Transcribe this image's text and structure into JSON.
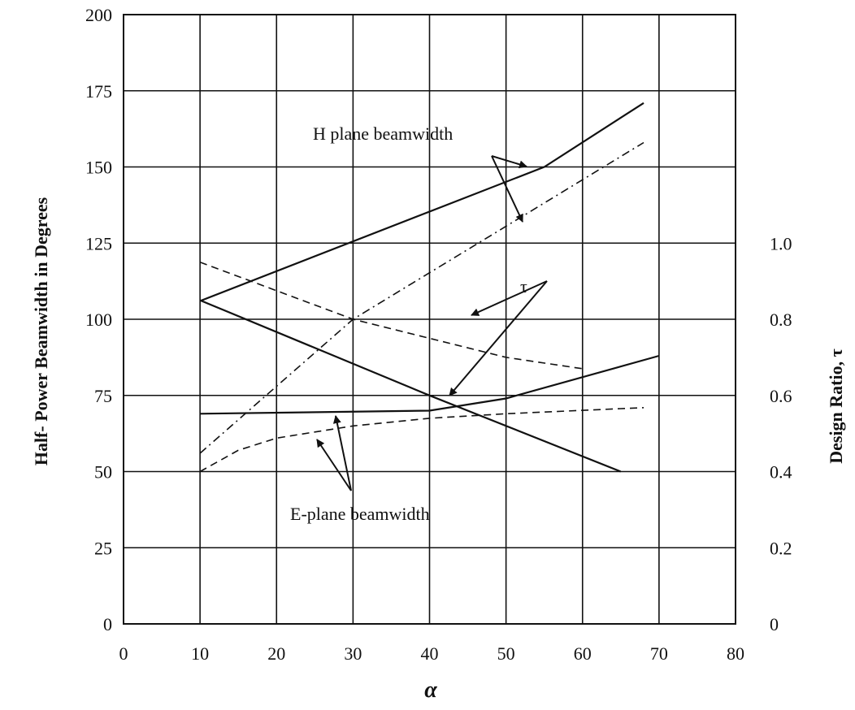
{
  "chart_data": {
    "type": "line",
    "xlabel": "α",
    "ylabel": "Half- Power Beamwidth in Degrees",
    "y2label": "Design Ratio, τ",
    "xlim": [
      0,
      80
    ],
    "ylim": [
      0,
      200
    ],
    "y2lim": [
      0,
      1.6
    ],
    "grid": true,
    "x_ticks": [
      "0",
      "10",
      "20",
      "30",
      "40",
      "50",
      "60",
      "70",
      "80"
    ],
    "x_tick_values": [
      0,
      10,
      20,
      30,
      40,
      50,
      60,
      70,
      80
    ],
    "y_ticks": [
      "0",
      "25",
      "50",
      "75",
      "100",
      "125",
      "150",
      "175",
      "200"
    ],
    "y_tick_values": [
      0,
      25,
      50,
      75,
      100,
      125,
      150,
      175,
      200
    ],
    "y2_ticks": [
      "0",
      "0.2",
      "0.4",
      "0.6",
      "0.8",
      "1.0"
    ],
    "y2_tick_values": [
      0,
      0.2,
      0.4,
      0.6,
      0.8,
      1.0
    ],
    "annotations": [
      {
        "text": "H plane beamwidth"
      },
      {
        "text": "τ"
      },
      {
        "text": "E-plane beamwidth"
      }
    ],
    "series": [
      {
        "style": "solid",
        "x": [
          10,
          55,
          68
        ],
        "y": [
          106,
          150,
          171
        ]
      },
      {
        "style": "dashdot",
        "x": [
          10,
          30,
          68
        ],
        "y": [
          56,
          100,
          158
        ]
      },
      {
        "style": "solid",
        "x": [
          10,
          40,
          50,
          70
        ],
        "y": [
          69,
          70,
          74,
          88
        ]
      },
      {
        "style": "dashed",
        "x": [
          10,
          15,
          20,
          30,
          40,
          50,
          68
        ],
        "y": [
          50,
          57,
          61,
          65,
          67.5,
          69,
          71
        ]
      },
      {
        "style": "solid",
        "axis": "right",
        "x": [
          10,
          40,
          65
        ],
        "y": [
          0.85,
          0.6,
          0.4
        ]
      },
      {
        "style": "dashed",
        "axis": "right",
        "x": [
          10,
          30,
          50,
          60
        ],
        "y": [
          0.95,
          0.8,
          0.7,
          0.67
        ]
      }
    ]
  }
}
